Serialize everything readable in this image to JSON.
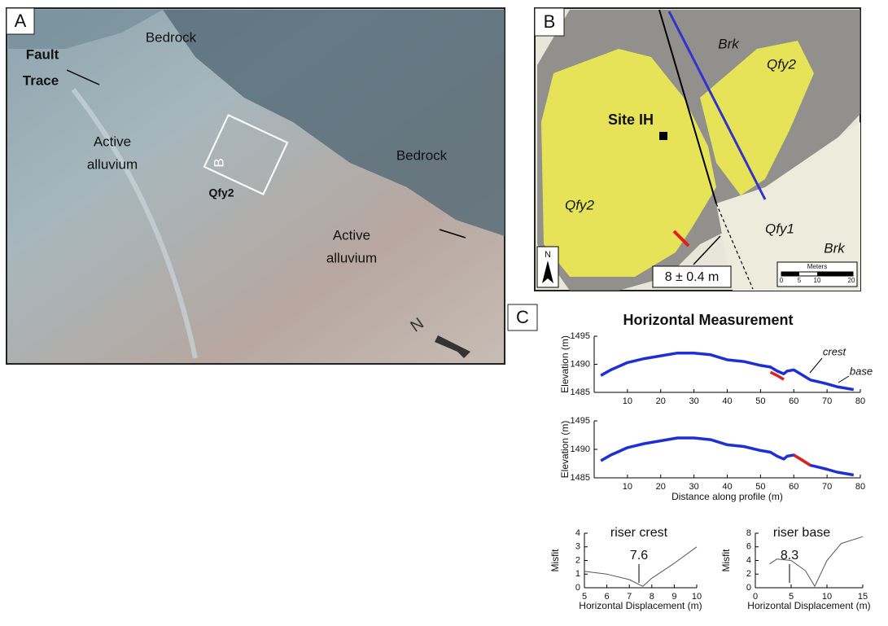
{
  "panel_a": {
    "label": "A",
    "bedrock_1": "Bedrock",
    "fault_trace": [
      "Fault",
      "Trace"
    ],
    "alluvium_1": [
      "Active",
      "alluvium"
    ],
    "box_label": "B",
    "unit": "Qfy2",
    "bedrock_2": "Bedrock",
    "alluvium_2": [
      "Active",
      "alluvium"
    ],
    "north": "N"
  },
  "panel_b": {
    "label": "B",
    "brk_1": "Brk",
    "qfy2_1": "Qfy2",
    "site": "Site IH",
    "qfy2_2": "Qfy2",
    "qfy1": "Qfy1",
    "brk_2": "Brk",
    "offset": "8 ± 0.4 m",
    "north": "N",
    "scale_title": "Meters",
    "scale_ticks": [
      "0",
      "5",
      "10",
      "20"
    ]
  },
  "panel_c": {
    "label": "C"
  },
  "chart_data": [
    {
      "type": "line",
      "title": "Horizontal Measurement",
      "ylabel": "Elevation (m)",
      "x": [
        2,
        5,
        10,
        15,
        20,
        25,
        30,
        35,
        40,
        45,
        50,
        53,
        55,
        57,
        58,
        60,
        62,
        65,
        68,
        70,
        73,
        75,
        78
      ],
      "series": [
        {
          "color": "#1f2fd6",
          "values": [
            1488,
            1489,
            1490.3,
            1491,
            1491.5,
            1492,
            1492,
            1491.7,
            1490.8,
            1490.5,
            1489.8,
            1489.5,
            1488.8,
            1488.3,
            1488.8,
            1489,
            1488.3,
            1487.2,
            1486.8,
            1486.5,
            1486,
            1485.8,
            1485.5
          ]
        },
        {
          "color": "#e0201a",
          "values": [
            null,
            null,
            null,
            null,
            null,
            null,
            null,
            null,
            null,
            null,
            null,
            1488.6,
            1488,
            1487.3,
            null,
            null,
            null,
            null,
            null,
            null,
            null,
            null,
            null
          ]
        }
      ],
      "xlim": [
        0,
        80
      ],
      "ylim": [
        1485,
        1495
      ],
      "xticks": [
        10,
        20,
        30,
        40,
        50,
        60,
        70,
        80
      ],
      "yticks": [
        1485,
        1490,
        1495
      ],
      "annotations": [
        "crest",
        "base"
      ]
    },
    {
      "type": "line",
      "ylabel": "Elevation (m)",
      "xlabel": "Distance along profile (m)",
      "x": [
        2,
        5,
        10,
        15,
        20,
        25,
        30,
        35,
        40,
        45,
        50,
        53,
        55,
        57,
        58,
        60,
        62,
        65,
        68,
        70,
        73,
        75,
        78
      ],
      "series": [
        {
          "color": "#1f2fd6",
          "values": [
            1488,
            1489,
            1490.3,
            1491,
            1491.5,
            1492,
            1492,
            1491.7,
            1490.8,
            1490.5,
            1489.8,
            1489.5,
            1488.8,
            1488.3,
            1488.8,
            1489,
            1488.3,
            1487.2,
            1486.8,
            1486.5,
            1486,
            1485.8,
            1485.5
          ]
        },
        {
          "color": "#e0201a",
          "values": [
            null,
            null,
            null,
            null,
            null,
            null,
            null,
            null,
            null,
            null,
            null,
            null,
            null,
            null,
            null,
            1489,
            1488.3,
            1487.2,
            null,
            null,
            null,
            null,
            null
          ]
        }
      ],
      "xlim": [
        0,
        80
      ],
      "ylim": [
        1485,
        1495
      ],
      "xticks": [
        10,
        20,
        30,
        40,
        50,
        60,
        70,
        80
      ],
      "yticks": [
        1485,
        1490,
        1495
      ]
    },
    {
      "type": "line",
      "title": "riser crest",
      "ylabel": "Misfit",
      "xlabel": "Horizontal Displacement (m)",
      "x": [
        5,
        6,
        7,
        7.6,
        8,
        9,
        10
      ],
      "series": [
        {
          "color": "#555555",
          "values": [
            1.2,
            1,
            0.6,
            0.1,
            0.7,
            1.8,
            3
          ]
        }
      ],
      "xlim": [
        5,
        10
      ],
      "ylim": [
        0,
        4
      ],
      "xticks": [
        5,
        6,
        7,
        8,
        9,
        10
      ],
      "yticks": [
        0,
        1,
        2,
        3,
        4
      ],
      "annotations": [
        "7.6"
      ]
    },
    {
      "type": "line",
      "title": "riser base",
      "ylabel": "Misfit",
      "xlabel": "Horizontal Displacement (m)",
      "x": [
        2,
        3,
        5,
        7,
        8.3,
        10,
        12,
        15
      ],
      "series": [
        {
          "color": "#555555",
          "values": [
            3.5,
            4.2,
            4,
            2.5,
            0.2,
            4,
            6.5,
            7.5
          ]
        }
      ],
      "xlim": [
        0,
        15
      ],
      "ylim": [
        0,
        8
      ],
      "xticks": [
        0,
        5,
        10,
        15
      ],
      "yticks": [
        0,
        2,
        4,
        6,
        8
      ],
      "annotations": [
        "8.3"
      ]
    }
  ]
}
